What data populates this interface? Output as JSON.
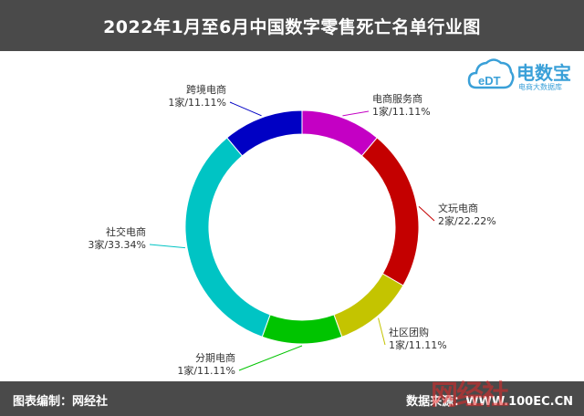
{
  "title": "2022年1月至6月中国数字零售死亡名单行业图",
  "footer": {
    "left": "图表编制：网经社",
    "right": "数据来源：WWW.100EC.CN"
  },
  "watermark": {
    "logo_name": "电数宝",
    "logo_sub": "电商大数据库",
    "logo_mark": "eDT",
    "corner_mark": "网经社"
  },
  "chart_data": {
    "type": "pie",
    "donut": true,
    "categories": [
      "电商服务商",
      "文玩电商",
      "社区团购",
      "分期电商",
      "社交电商",
      "跨境电商"
    ],
    "values": [
      1,
      2,
      1,
      1,
      3,
      1
    ],
    "value_labels": [
      "1家/11.11%",
      "2家/22.22%",
      "1家/11.11%",
      "1家/11.11%",
      "3家/33.34%",
      "1家/11.11%"
    ],
    "colors": [
      "#c400c4",
      "#c40000",
      "#c4c400",
      "#00c400",
      "#00c4c4",
      "#0000c4"
    ],
    "start_angle_deg": 0,
    "direction": "clockwise"
  }
}
